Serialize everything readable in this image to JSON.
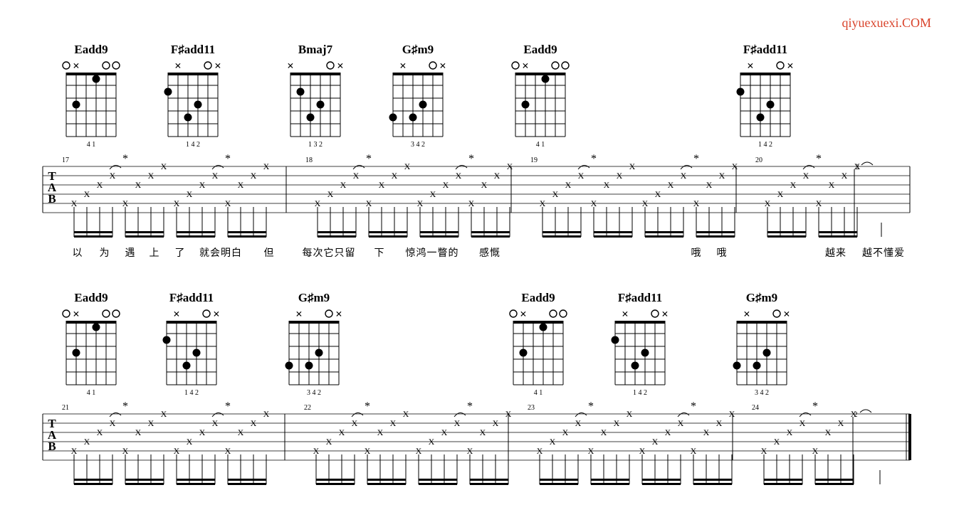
{
  "watermark": "qiyuexuexi.COM",
  "tab_clef": [
    "T",
    "A",
    "B"
  ],
  "systems": [
    {
      "chords": [
        {
          "name": "Eadd9",
          "top": "OX  OO",
          "fingers": "4 1"
        },
        {
          "name": "F♯add11",
          "top": " X  OX",
          "fingers": "1   4 2"
        },
        {
          "name": "Bmaj7",
          "top": "X   OX",
          "fingers": "1 3 2"
        },
        {
          "name": "G♯m9",
          "top": " X  OX",
          "fingers": "3   4 2"
        },
        {
          "name": "Eadd9",
          "top": "OX  OO",
          "fingers": "4 1"
        },
        {
          "name": "F♯add11",
          "top": " X  OX",
          "fingers": "1   4 2"
        }
      ],
      "measures": [
        "17",
        "18",
        "19",
        "20"
      ],
      "end_fret": "2",
      "lyrics": [
        "以",
        "为",
        "遇",
        "上",
        "了",
        "就会明白",
        "但",
        "每次它只留",
        "下",
        "惊鸿一瞥的",
        "感慨",
        "哦",
        "哦",
        "越来",
        "越不懂爱"
      ]
    },
    {
      "chords": [
        {
          "name": "Eadd9",
          "top": "OX  OO",
          "fingers": "4 1"
        },
        {
          "name": "F♯add11",
          "top": " X  OX",
          "fingers": "1   4 2"
        },
        {
          "name": "G♯m9",
          "top": " X  OX",
          "fingers": "3   4 2"
        },
        {
          "name": "Eadd9",
          "top": "OX  OO",
          "fingers": "4 1"
        },
        {
          "name": "F♯add11",
          "top": " X  OX",
          "fingers": "1   4 2"
        },
        {
          "name": "G♯m9",
          "top": " X  OX",
          "fingers": "3   4 2"
        }
      ],
      "measures": [
        "21",
        "22",
        "23",
        "24"
      ],
      "end_fret": "2",
      "lyrics": []
    }
  ],
  "note_mark": "X",
  "accent_mark": "*"
}
